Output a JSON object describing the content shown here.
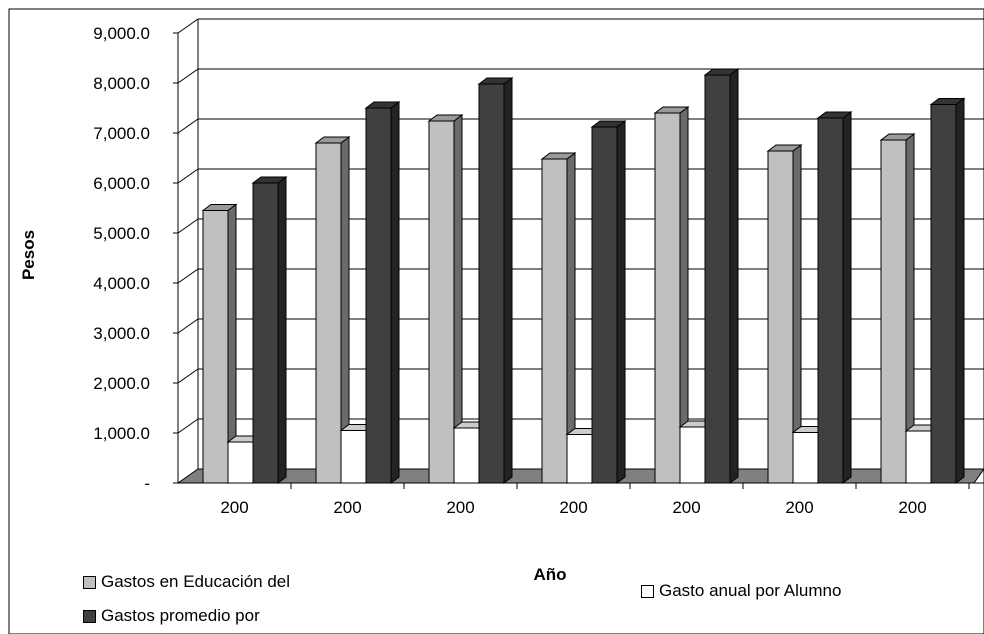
{
  "chart_data": {
    "type": "bar",
    "title": "",
    "ylabel": "Pesos",
    "xlabel": "Año",
    "ylim": [
      0,
      9000
    ],
    "yticks": [
      "-",
      "1,000.0",
      "2,000.0",
      "3,000.0",
      "4,000.0",
      "5,000.0",
      "6,000.0",
      "7,000.0",
      "8,000.0",
      "9,000.0"
    ],
    "categories": [
      "200",
      "200",
      "200",
      "200",
      "200",
      "200",
      "200"
    ],
    "series": [
      {
        "name": "Gastos en Educación del",
        "color": "#c0c0c0",
        "values": [
          5450,
          6800,
          7240,
          6480,
          7400,
          6640,
          6860
        ]
      },
      {
        "name": "Gasto anual por Alumno",
        "color": "#ffffff",
        "values": [
          820,
          1050,
          1100,
          970,
          1120,
          1010,
          1040
        ]
      },
      {
        "name": "Gastos promedio por",
        "color": "#404040",
        "values": [
          6000,
          7500,
          7980,
          7120,
          8160,
          7300,
          7570
        ]
      }
    ],
    "grid": true,
    "legend": "bottom"
  }
}
